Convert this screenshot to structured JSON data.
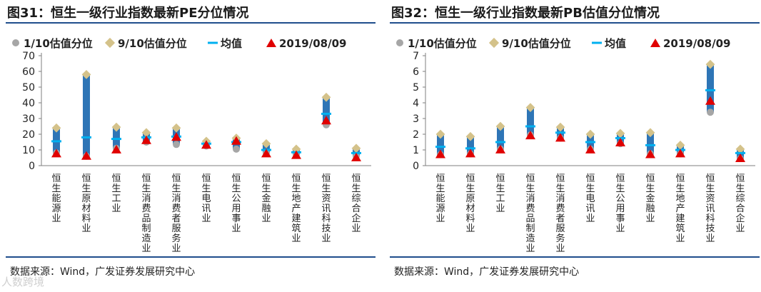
{
  "source_text": "数据来源：Wind，广发证券发展研究中心",
  "watermark": "人数跨境",
  "colors": {
    "bar": "#2e75b6",
    "mean": "#00b0f0",
    "p10": "#a6a6a6",
    "p90": "#d4c28a",
    "current": "#e00000",
    "rule": "#1f4e8c"
  },
  "chart_data": [
    {
      "type": "range-marker",
      "title": "图31：恒生一级行业指数最新PE分位情况",
      "legend": [
        "1/10估值分位",
        "9/10估值分位",
        "均值",
        "2019/08/09"
      ],
      "categories": [
        "恒生能源业",
        "恒生原材料业",
        "恒生工业",
        "恒生消费品制造业",
        "恒生消费者服务业",
        "恒生电讯业",
        "恒生公用事业",
        "恒生金融业",
        "恒生地产建筑业",
        "恒生资讯科技业",
        "恒生综合企业"
      ],
      "ylim": [
        0,
        70
      ],
      "yticks": [
        "0",
        "10",
        "20",
        "30",
        "40",
        "50",
        "60",
        "70"
      ],
      "series": [
        {
          "name": "1/10估值分位",
          "values": [
            8,
            6,
            11,
            15,
            13.5,
            12.5,
            10.5,
            8,
            7,
            26,
            6
          ]
        },
        {
          "name": "9/10估值分位",
          "values": [
            24,
            58,
            24.5,
            21,
            24,
            15.5,
            17.5,
            14,
            10.5,
            43.5,
            11
          ]
        },
        {
          "name": "均值",
          "values": [
            15.5,
            18,
            17,
            18,
            18.5,
            14,
            15,
            10,
            8.5,
            33,
            8
          ]
        },
        {
          "name": "2019/08/09",
          "values": [
            8,
            6.5,
            10.5,
            16.5,
            18.5,
            13.5,
            16,
            8,
            7,
            29,
            5.5
          ]
        }
      ]
    },
    {
      "type": "range-marker",
      "title": "图32：恒生一级行业指数最新PB估值分位情况",
      "legend": [
        "1/10估值分位",
        "9/10估值分位",
        "均值",
        "2019/08/09"
      ],
      "categories": [
        "恒生能源业",
        "恒生原材料业",
        "恒生工业",
        "恒生消费品制造业",
        "恒生消费者服务业",
        "恒生电讯业",
        "恒生公用事业",
        "恒生金融业",
        "恒生地产建筑业",
        "恒生资讯科技业",
        "恒生综合企业"
      ],
      "ylim": [
        0,
        7
      ],
      "yticks": [
        "0",
        "1",
        "2",
        "3",
        "4",
        "5",
        "6",
        "7"
      ],
      "series": [
        {
          "name": "1/10估值分位",
          "values": [
            0.7,
            0.75,
            1.05,
            1.95,
            1.75,
            1.05,
            1.4,
            0.75,
            0.75,
            3.4,
            0.45
          ]
        },
        {
          "name": "9/10估值分位",
          "values": [
            2.0,
            1.85,
            2.5,
            3.7,
            2.45,
            2.0,
            2.05,
            2.1,
            1.3,
            6.45,
            1.05
          ]
        },
        {
          "name": "均值",
          "values": [
            1.2,
            1.1,
            1.5,
            2.5,
            2.1,
            1.5,
            1.75,
            1.3,
            1.0,
            4.8,
            0.8
          ]
        },
        {
          "name": "2019/08/09",
          "values": [
            0.75,
            0.8,
            1.05,
            1.95,
            1.8,
            1.05,
            1.5,
            0.75,
            0.8,
            4.15,
            0.5
          ]
        }
      ]
    }
  ]
}
